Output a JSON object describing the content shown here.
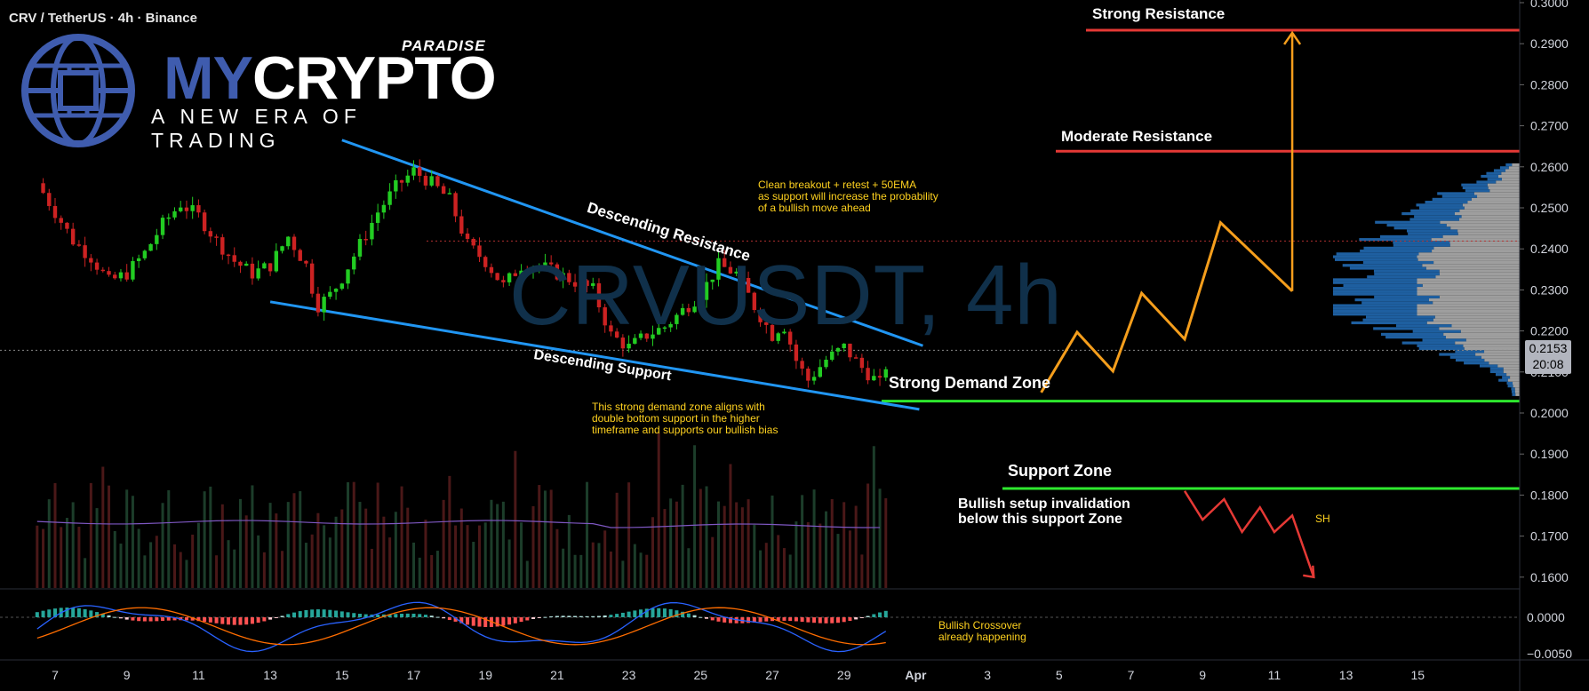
{
  "header": {
    "title": "CRV / TetherUS · 4h · Binance"
  },
  "brand": {
    "sub": "PARADISE",
    "main_a": "MY",
    "main_b": "CRYPTO",
    "tagline": "A NEW ERA OF TRADING"
  },
  "watermark": "CRVUSDT, 4h",
  "last_price": {
    "value": "0.2153",
    "countdown": "20:08"
  },
  "annotations": {
    "strong_resistance": "Strong Resistance",
    "moderate_resistance": "Moderate Resistance",
    "descending_resistance": "Descending Resistance",
    "descending_support": "Descending Support",
    "strong_demand": "Strong Demand Zone",
    "support_zone": "Support Zone",
    "invalidation_1": "Bullish setup invalidation",
    "invalidation_2": "below this support Zone",
    "breakout_note_1": "Clean breakout + retest + 50EMA",
    "breakout_note_2": "as support will increase the probability",
    "breakout_note_3": "of a bullish move ahead",
    "demand_note_1": "This strong demand zone aligns with",
    "demand_note_2": "double bottom support in the higher",
    "demand_note_3": "timeframe and supports our bullish bias",
    "crossover_1": "Bullish Crossover",
    "crossover_2": "already happening",
    "sh": "SH"
  },
  "colors": {
    "up": "#26a69a",
    "up_bright": "#22cc22",
    "down": "#ef5350",
    "down_dark": "#cc2222",
    "trendline": "#2196f3",
    "resistance": "#e53935",
    "support": "#2ee82e",
    "projection": "#f59e1c",
    "projection_down": "#e53935",
    "note": "#ffd21f",
    "watermark": "#10304a"
  },
  "chart_data": {
    "type": "candlestick",
    "title": "CRV / TetherUS · 4h · Binance",
    "y_range": [
      0.15,
      0.3
    ],
    "y_ticks": [
      "0.3000",
      "0.2900",
      "0.2800",
      "0.2700",
      "0.2600",
      "0.2500",
      "0.2400",
      "0.2300",
      "0.2200",
      "0.2100",
      "0.2000",
      "0.1900",
      "0.1800",
      "0.1700",
      "0.1600"
    ],
    "y_ticks_values": [
      0.3,
      0.29,
      0.28,
      0.27,
      0.26,
      0.25,
      0.24,
      0.23,
      0.22,
      0.21,
      0.2,
      0.19,
      0.18,
      0.17,
      0.16
    ],
    "x_ticks": [
      "7",
      "9",
      "11",
      "13",
      "15",
      "17",
      "19",
      "21",
      "23",
      "25",
      "27",
      "29",
      "Apr",
      "3",
      "5",
      "7",
      "9",
      "11",
      "13",
      "15"
    ],
    "close_path": [
      [
        6.5,
        0.256
      ],
      [
        7,
        0.249
      ],
      [
        7.5,
        0.242
      ],
      [
        8,
        0.238
      ],
      [
        8.5,
        0.232
      ],
      [
        9,
        0.234
      ],
      [
        9.5,
        0.239
      ],
      [
        10,
        0.246
      ],
      [
        10.5,
        0.251
      ],
      [
        11,
        0.248
      ],
      [
        11.5,
        0.242
      ],
      [
        12,
        0.237
      ],
      [
        12.5,
        0.234
      ],
      [
        13,
        0.236
      ],
      [
        13.5,
        0.243
      ],
      [
        14,
        0.236
      ],
      [
        14.3,
        0.226
      ],
      [
        14.7,
        0.229
      ],
      [
        15,
        0.233
      ],
      [
        15.5,
        0.241
      ],
      [
        16,
        0.249
      ],
      [
        16.5,
        0.255
      ],
      [
        17,
        0.259
      ],
      [
        17.5,
        0.256
      ],
      [
        18,
        0.252
      ],
      [
        18.5,
        0.241
      ],
      [
        19,
        0.237
      ],
      [
        19.5,
        0.231
      ],
      [
        20,
        0.236
      ],
      [
        20.5,
        0.236
      ],
      [
        21,
        0.234
      ],
      [
        21.5,
        0.232
      ],
      [
        22,
        0.23
      ],
      [
        22.5,
        0.219
      ],
      [
        23,
        0.216
      ],
      [
        23.5,
        0.219
      ],
      [
        24,
        0.221
      ],
      [
        24.5,
        0.225
      ],
      [
        25,
        0.229
      ],
      [
        25.5,
        0.236
      ],
      [
        26,
        0.234
      ],
      [
        26.5,
        0.226
      ],
      [
        27,
        0.219
      ],
      [
        27.3,
        0.222
      ],
      [
        27.7,
        0.212
      ],
      [
        28,
        0.208
      ],
      [
        28.5,
        0.213
      ],
      [
        29,
        0.216
      ],
      [
        29.5,
        0.211
      ],
      [
        30,
        0.207
      ],
      [
        30.3,
        0.2153
      ]
    ],
    "levels": [
      {
        "name": "Strong Resistance",
        "value": 0.2933
      },
      {
        "name": "Moderate Resistance",
        "value": 0.2638
      },
      {
        "name": "Strong Demand Zone",
        "value": 0.2029
      },
      {
        "name": "Support Zone",
        "value": 0.1816
      },
      {
        "name": "last price",
        "value": 0.2153
      },
      {
        "name": "dotted level",
        "value": 0.2419
      }
    ],
    "trendlines": [
      {
        "name": "Descending Resistance",
        "from": [
          15,
          0.2665
        ],
        "to": [
          31.2,
          0.2164
        ]
      },
      {
        "name": "Descending Support",
        "from": [
          13,
          0.2271
        ],
        "to": [
          31.1,
          0.2009
        ]
      }
    ],
    "projection_up": [
      [
        34.5,
        0.205
      ],
      [
        35.5,
        0.2197
      ],
      [
        36.5,
        0.2102
      ],
      [
        37.3,
        0.2292
      ],
      [
        38.5,
        0.218
      ],
      [
        39.5,
        0.2464
      ],
      [
        41.5,
        0.2297
      ]
    ],
    "projection_target": {
      "x": 41.5,
      "from": 0.2297,
      "to": 0.2933
    },
    "projection_down": [
      [
        38.5,
        0.181
      ],
      [
        39.0,
        0.174
      ],
      [
        39.6,
        0.179
      ],
      [
        40.1,
        0.171
      ],
      [
        40.6,
        0.177
      ],
      [
        41.0,
        0.171
      ],
      [
        41.5,
        0.175
      ],
      [
        42.1,
        0.16
      ]
    ],
    "macd_ticks": [
      "0.0000",
      "−0.0050"
    ],
    "volume_profile": {
      "range": [
        0.2045,
        0.2608
      ],
      "poc": 0.2345
    }
  }
}
